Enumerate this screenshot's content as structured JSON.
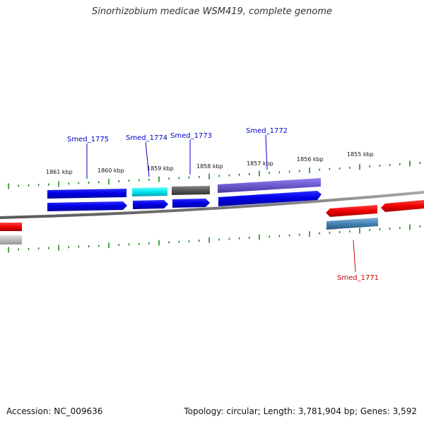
{
  "title": "Sinorhizobium medicae WSM419, complete genome",
  "footer": {
    "accession": "Accession: NC_009636",
    "summary": "Topology: circular; Length: 3,781,904 bp; Genes: 3,592"
  },
  "scale_labels": [
    "1861 kbp",
    "1860 kbp",
    "1859 kbp",
    "1858 kbp",
    "1857 kbp",
    "1856 kbp",
    "1855 kbp"
  ],
  "gene_labels": [
    "Smed_1775",
    "Smed_1774",
    "Smed_1773",
    "Smed_1772",
    "Smed_1771"
  ],
  "colors": {
    "forward_label": "#0000cc",
    "reverse_label": "#cc0000",
    "backbone": "#808080",
    "tick": "#228b22",
    "blue": "#0000ee",
    "cyan": "#00e5ee",
    "dark_gray": "#555555",
    "slate_purple": "#6a5acd",
    "red": "#ee0000",
    "steel_blue": "#4682b4",
    "light_gray": "#bbbbbb"
  }
}
